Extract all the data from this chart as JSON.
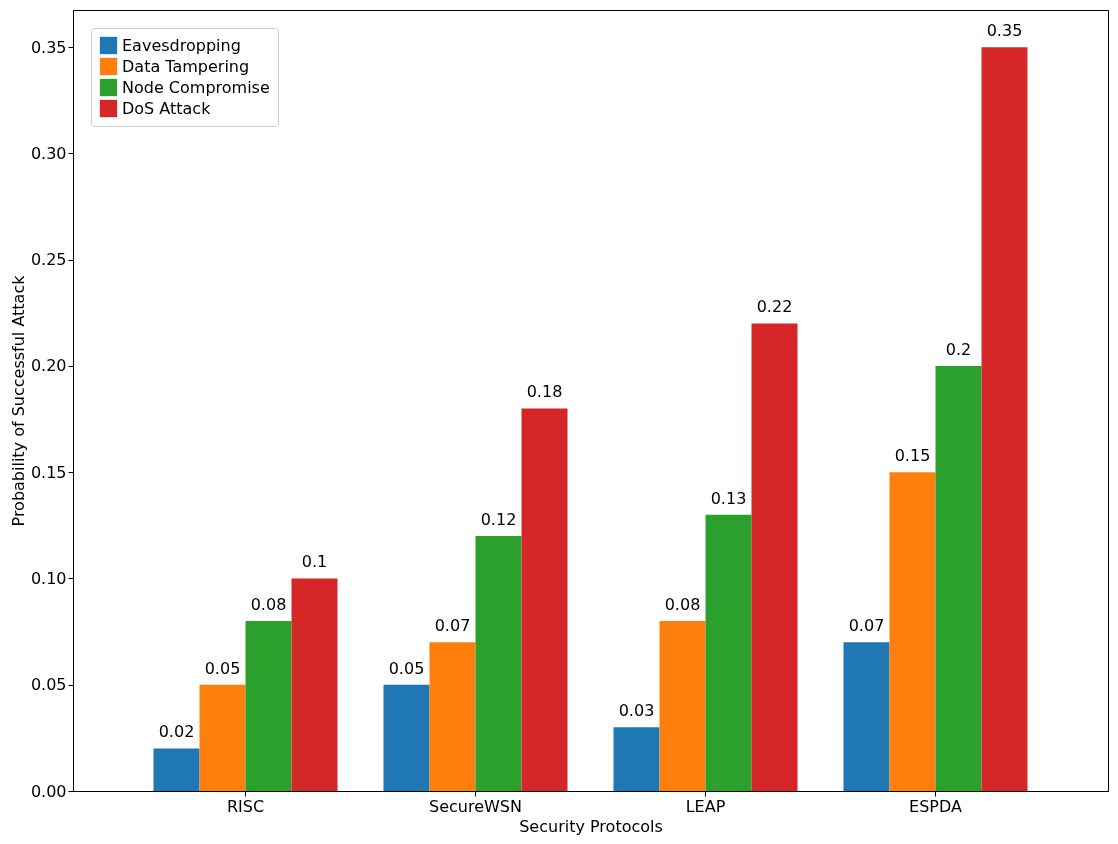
{
  "chart_data": {
    "type": "bar",
    "xlabel": "Security Protocols",
    "ylabel": "Probability of Successful Attack",
    "categories": [
      "RISC",
      "SecureWSN",
      "LEAP",
      "ESPDA"
    ],
    "series": [
      {
        "name": "Eavesdropping",
        "color": "#1f77b4",
        "values": [
          0.02,
          0.05,
          0.03,
          0.07
        ]
      },
      {
        "name": "Data Tampering",
        "color": "#ff7f0e",
        "values": [
          0.05,
          0.07,
          0.08,
          0.15
        ]
      },
      {
        "name": "Node Compromise",
        "color": "#2ca02c",
        "values": [
          0.08,
          0.12,
          0.13,
          0.2
        ]
      },
      {
        "name": "DoS Attack",
        "color": "#d62728",
        "values": [
          0.1,
          0.18,
          0.22,
          0.35
        ]
      }
    ],
    "ylim": [
      0,
      0.3675
    ],
    "yticks": [
      {
        "value": 0,
        "label": "0.00"
      },
      {
        "value": 0.05,
        "label": "0.05"
      },
      {
        "value": 0.1,
        "label": "0.10"
      },
      {
        "value": 0.15,
        "label": "0.15"
      },
      {
        "value": 0.2,
        "label": "0.20"
      },
      {
        "value": 0.25,
        "label": "0.25"
      },
      {
        "value": 0.3,
        "label": "0.30"
      },
      {
        "value": 0.35,
        "label": "0.35"
      }
    ],
    "data_labels": true,
    "legend": "top left",
    "grid": false
  }
}
